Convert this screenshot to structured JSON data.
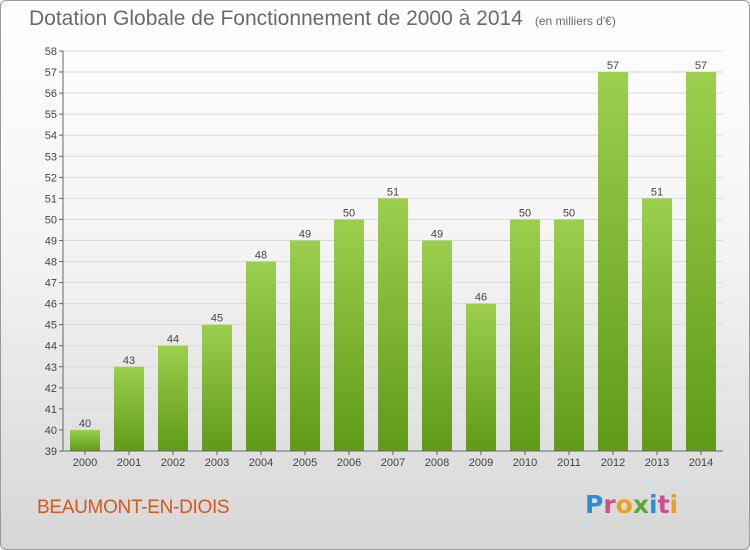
{
  "title": {
    "main": "Dotation Globale de Fonctionnement de 2000 à 2014",
    "unit": "(en milliers d'€)"
  },
  "footer": {
    "commune": "BEAUMONT-EN-DIOIS",
    "logo_text": "Proxiti"
  },
  "colors": {
    "bar_light": "#9ccf4e",
    "bar_dark": "#5f9a18",
    "title": "#6a6a6a",
    "commune": "#d35a1e",
    "grid": "#d9d9d9"
  },
  "chart_data": {
    "type": "bar",
    "title": "Dotation Globale de Fonctionnement de 2000 à 2014",
    "subtitle": "(en milliers d'€)",
    "categories": [
      "2000",
      "2001",
      "2002",
      "2003",
      "2004",
      "2005",
      "2006",
      "2007",
      "2008",
      "2009",
      "2010",
      "2011",
      "2012",
      "2013",
      "2014"
    ],
    "values": [
      40,
      43,
      44,
      45,
      48,
      49,
      50,
      51,
      49,
      46,
      50,
      50,
      57,
      51,
      57
    ],
    "ylim": [
      39,
      58
    ],
    "yticks": [
      39,
      40,
      41,
      42,
      43,
      44,
      45,
      46,
      47,
      48,
      49,
      50,
      51,
      52,
      53,
      54,
      55,
      56,
      57,
      58
    ],
    "grid": true,
    "data_labels": true,
    "xlabel": "",
    "ylabel": ""
  }
}
